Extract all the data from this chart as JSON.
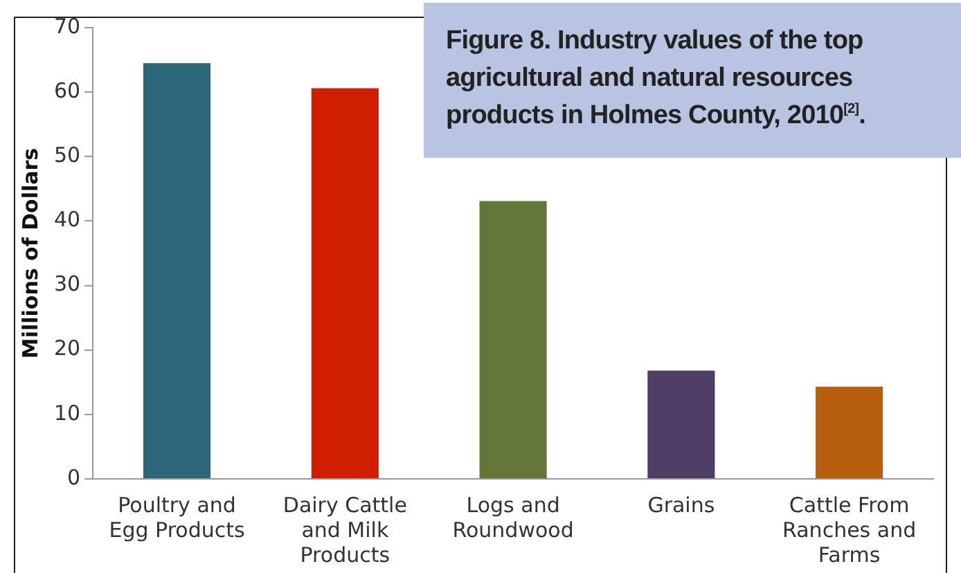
{
  "chart_data": {
    "type": "bar",
    "title": "Figure 8. Industry values of the top agricultural and natural resources products in Holmes County, 2010$^{[2]}$.",
    "ylabel": "Millions of Dollars",
    "categories": [
      "Poultry and Egg Products",
      "Dairy Cattle and Milk Products",
      "Logs and Roundwood",
      "Grains",
      "Cattle From Ranches and Farms"
    ],
    "values": [
      64.5,
      60.6,
      43.1,
      16.8,
      14.3
    ],
    "colors": [
      "#2c6678",
      "#d01f00",
      "#63773a",
      "#4e3e65",
      "#b65f0f"
    ],
    "ylim": [
      0,
      70
    ],
    "yticks": [
      0,
      10,
      20,
      30,
      40,
      50,
      60,
      70
    ],
    "grid": false,
    "legend": false
  }
}
